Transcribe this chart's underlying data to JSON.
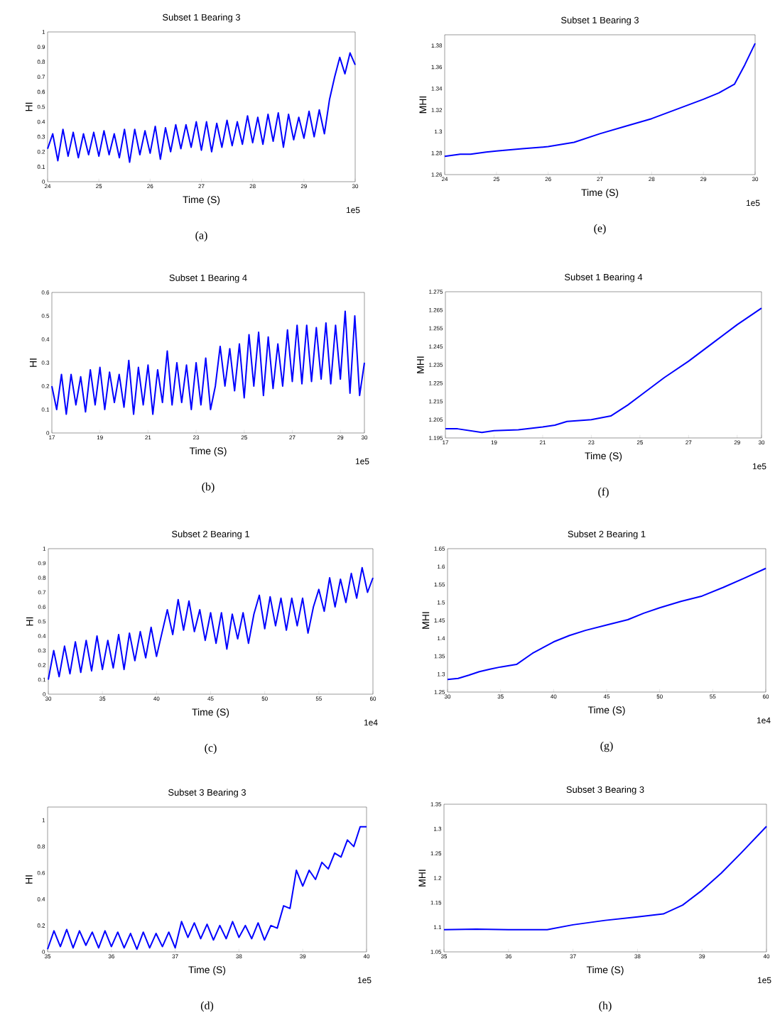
{
  "chart_data": [
    {
      "type": "line",
      "title": "Subset 1 Bearing 3",
      "xlabel": "Time (S)",
      "ylabel": "HI",
      "annotations": [
        "1e5",
        "(a)"
      ],
      "color": "#0000ff",
      "marker": "none",
      "xlim": [
        24,
        30
      ],
      "ylim": [
        0,
        1
      ],
      "xticks": [
        24,
        25,
        26,
        27,
        28,
        29,
        30
      ],
      "yticks": [
        0,
        0.1,
        0.2,
        0.3,
        0.4,
        0.5,
        0.6,
        0.7,
        0.8,
        0.9,
        1
      ],
      "x": [
        24.0,
        24.1,
        24.2,
        24.3,
        24.4,
        24.5,
        24.6,
        24.7,
        24.8,
        24.9,
        25.0,
        25.1,
        25.2,
        25.3,
        25.4,
        25.5,
        25.6,
        25.7,
        25.8,
        25.9,
        26.0,
        26.1,
        26.2,
        26.3,
        26.4,
        26.5,
        26.6,
        26.7,
        26.8,
        26.9,
        27.0,
        27.1,
        27.2,
        27.3,
        27.4,
        27.5,
        27.6,
        27.7,
        27.8,
        27.9,
        28.0,
        28.1,
        28.2,
        28.3,
        28.4,
        28.5,
        28.6,
        28.7,
        28.8,
        28.9,
        29.0,
        29.1,
        29.2,
        29.3,
        29.4,
        29.5,
        29.6,
        29.7,
        29.8,
        29.9,
        30.0
      ],
      "values": [
        0.22,
        0.32,
        0.14,
        0.35,
        0.17,
        0.33,
        0.16,
        0.32,
        0.18,
        0.33,
        0.17,
        0.34,
        0.18,
        0.32,
        0.16,
        0.35,
        0.13,
        0.35,
        0.18,
        0.34,
        0.19,
        0.37,
        0.15,
        0.36,
        0.2,
        0.38,
        0.22,
        0.38,
        0.23,
        0.4,
        0.21,
        0.4,
        0.2,
        0.39,
        0.23,
        0.41,
        0.24,
        0.4,
        0.25,
        0.44,
        0.26,
        0.43,
        0.25,
        0.45,
        0.27,
        0.46,
        0.23,
        0.45,
        0.28,
        0.43,
        0.29,
        0.47,
        0.3,
        0.48,
        0.32,
        0.55,
        0.7,
        0.83,
        0.72,
        0.86,
        0.78
      ]
    },
    {
      "type": "line",
      "title": "Subset 1 Bearing 3",
      "xlabel": "Time (S)",
      "ylabel": "MHI",
      "annotations": [
        "1e5",
        "(e)"
      ],
      "color": "#0000ff",
      "marker": "none",
      "xlim": [
        24,
        30
      ],
      "ylim": [
        1.26,
        1.39
      ],
      "xticks": [
        24,
        25,
        26,
        27,
        28,
        29,
        30
      ],
      "yticks": [
        1.26,
        1.28,
        1.3,
        1.32,
        1.34,
        1.36,
        1.38
      ],
      "x": [
        24,
        24.3,
        24.5,
        24.8,
        25,
        25.5,
        26,
        26.5,
        27,
        27.5,
        28,
        28.5,
        29,
        29.3,
        29.6,
        29.8,
        30
      ],
      "values": [
        1.277,
        1.279,
        1.279,
        1.281,
        1.282,
        1.284,
        1.286,
        1.29,
        1.298,
        1.305,
        1.312,
        1.321,
        1.33,
        1.336,
        1.344,
        1.362,
        1.382
      ]
    },
    {
      "type": "line",
      "title": "Subset 1 Bearing 4",
      "xlabel": "Time (S)",
      "ylabel": "HI",
      "annotations": [
        "1e5",
        "(b)"
      ],
      "color": "#0000ff",
      "marker": "none",
      "xlim": [
        17,
        30
      ],
      "ylim": [
        0,
        0.6
      ],
      "xticks": [
        17,
        19,
        21,
        23,
        25,
        27,
        29,
        30
      ],
      "yticks": [
        0,
        0.1,
        0.2,
        0.3,
        0.4,
        0.5,
        0.6
      ],
      "x": [
        17.0,
        17.2,
        17.4,
        17.6,
        17.8,
        18.0,
        18.2,
        18.4,
        18.6,
        18.8,
        19.0,
        19.2,
        19.4,
        19.6,
        19.8,
        20.0,
        20.2,
        20.4,
        20.6,
        20.8,
        21.0,
        21.2,
        21.4,
        21.6,
        21.8,
        22.0,
        22.2,
        22.4,
        22.6,
        22.8,
        23.0,
        23.2,
        23.4,
        23.6,
        23.8,
        24.0,
        24.2,
        24.4,
        24.6,
        24.8,
        25.0,
        25.2,
        25.4,
        25.6,
        25.8,
        26.0,
        26.2,
        26.4,
        26.6,
        26.8,
        27.0,
        27.2,
        27.4,
        27.6,
        27.8,
        28.0,
        28.2,
        28.4,
        28.6,
        28.8,
        29.0,
        29.2,
        29.4,
        29.6,
        29.8,
        30.0
      ],
      "values": [
        0.2,
        0.1,
        0.25,
        0.08,
        0.25,
        0.12,
        0.24,
        0.09,
        0.27,
        0.12,
        0.28,
        0.1,
        0.26,
        0.13,
        0.25,
        0.11,
        0.31,
        0.08,
        0.28,
        0.12,
        0.29,
        0.08,
        0.27,
        0.13,
        0.35,
        0.12,
        0.3,
        0.13,
        0.29,
        0.1,
        0.3,
        0.12,
        0.32,
        0.1,
        0.2,
        0.37,
        0.2,
        0.36,
        0.18,
        0.38,
        0.15,
        0.42,
        0.2,
        0.43,
        0.16,
        0.41,
        0.19,
        0.38,
        0.2,
        0.44,
        0.22,
        0.46,
        0.21,
        0.46,
        0.22,
        0.45,
        0.23,
        0.47,
        0.21,
        0.46,
        0.23,
        0.52,
        0.17,
        0.5,
        0.16,
        0.3
      ]
    },
    {
      "type": "line",
      "title": "Subset 1 Bearing 4",
      "xlabel": "Time (S)",
      "ylabel": "MHI",
      "annotations": [
        "1e5",
        "(f)"
      ],
      "color": "#0000ff",
      "marker": "none",
      "xlim": [
        17,
        30
      ],
      "ylim": [
        1.195,
        1.275
      ],
      "xticks": [
        17,
        19,
        21,
        23,
        25,
        27,
        29,
        30
      ],
      "yticks": [
        1.195,
        1.205,
        1.215,
        1.225,
        1.235,
        1.245,
        1.255,
        1.265,
        1.275
      ],
      "x": [
        17,
        17.5,
        18,
        18.5,
        19,
        20,
        21,
        21.5,
        22,
        23,
        23.8,
        24.5,
        25,
        26,
        27,
        28,
        29,
        30
      ],
      "values": [
        1.2,
        1.2,
        1.199,
        1.198,
        1.199,
        1.1995,
        1.201,
        1.202,
        1.204,
        1.205,
        1.207,
        1.213,
        1.218,
        1.228,
        1.237,
        1.247,
        1.257,
        1.266
      ]
    },
    {
      "type": "line",
      "title": "Subset 2 Bearing 1",
      "xlabel": "Time (S)",
      "ylabel": "HI",
      "annotations": [
        "1e4",
        "(c)"
      ],
      "color": "#0000ff",
      "marker": "none",
      "xlim": [
        30,
        60
      ],
      "ylim": [
        0,
        1
      ],
      "xticks": [
        30,
        35,
        40,
        45,
        50,
        55,
        60
      ],
      "yticks": [
        0,
        0.1,
        0.2,
        0.3,
        0.4,
        0.5,
        0.6,
        0.7,
        0.8,
        0.9,
        1
      ],
      "x": [
        30.0,
        30.5,
        31.0,
        31.5,
        32.0,
        32.5,
        33.0,
        33.5,
        34.0,
        34.5,
        35.0,
        35.5,
        36.0,
        36.5,
        37.0,
        37.5,
        38.0,
        38.5,
        39.0,
        39.5,
        40.0,
        40.5,
        41.0,
        41.5,
        42.0,
        42.5,
        43.0,
        43.5,
        44.0,
        44.5,
        45.0,
        45.5,
        46.0,
        46.5,
        47.0,
        47.5,
        48.0,
        48.5,
        49.0,
        49.5,
        50.0,
        50.5,
        51.0,
        51.5,
        52.0,
        52.5,
        53.0,
        53.5,
        54.0,
        54.5,
        55.0,
        55.5,
        56.0,
        56.5,
        57.0,
        57.5,
        58.0,
        58.5,
        59.0,
        59.5,
        60.0
      ],
      "values": [
        0.1,
        0.3,
        0.12,
        0.33,
        0.14,
        0.36,
        0.15,
        0.37,
        0.16,
        0.4,
        0.17,
        0.37,
        0.18,
        0.41,
        0.17,
        0.42,
        0.23,
        0.43,
        0.25,
        0.46,
        0.26,
        0.42,
        0.58,
        0.41,
        0.65,
        0.44,
        0.64,
        0.43,
        0.58,
        0.37,
        0.56,
        0.35,
        0.56,
        0.31,
        0.55,
        0.38,
        0.56,
        0.35,
        0.55,
        0.68,
        0.45,
        0.67,
        0.47,
        0.66,
        0.44,
        0.66,
        0.47,
        0.66,
        0.42,
        0.6,
        0.72,
        0.57,
        0.8,
        0.6,
        0.79,
        0.63,
        0.83,
        0.66,
        0.87,
        0.7,
        0.8
      ]
    },
    {
      "type": "line",
      "title": "Subset 2 Bearing 1",
      "xlabel": "Time (S)",
      "ylabel": "MHI",
      "annotations": [
        "1e4",
        "(g)"
      ],
      "color": "#0000ff",
      "marker": "none",
      "xlim": [
        30,
        60
      ],
      "ylim": [
        1.25,
        1.65
      ],
      "xticks": [
        30,
        35,
        40,
        45,
        50,
        55,
        60
      ],
      "yticks": [
        1.25,
        1.3,
        1.35,
        1.4,
        1.45,
        1.5,
        1.55,
        1.6,
        1.65
      ],
      "x": [
        30,
        31,
        32,
        33,
        34,
        35,
        36.5,
        38,
        40,
        41.5,
        43,
        45,
        47,
        48.5,
        50,
        52,
        54,
        56,
        58,
        60
      ],
      "values": [
        1.285,
        1.288,
        1.297,
        1.307,
        1.314,
        1.32,
        1.327,
        1.358,
        1.39,
        1.408,
        1.422,
        1.437,
        1.452,
        1.47,
        1.485,
        1.503,
        1.518,
        1.542,
        1.568,
        1.595
      ]
    },
    {
      "type": "line",
      "title": "Subset 3 Bearing 3",
      "xlabel": "Time (S)",
      "ylabel": "HI",
      "annotations": [
        "1e5",
        "(d)"
      ],
      "color": "#0000ff",
      "marker": "none",
      "xlim": [
        35,
        40
      ],
      "ylim": [
        0,
        1.1
      ],
      "xticks": [
        35,
        36,
        37,
        38,
        39,
        40
      ],
      "yticks": [
        0,
        0.2,
        0.4,
        0.6,
        0.8,
        1
      ],
      "x": [
        35.0,
        35.1,
        35.2,
        35.3,
        35.4,
        35.5,
        35.6,
        35.7,
        35.8,
        35.9,
        36.0,
        36.1,
        36.2,
        36.3,
        36.4,
        36.5,
        36.6,
        36.7,
        36.8,
        36.9,
        37.0,
        37.1,
        37.2,
        37.3,
        37.4,
        37.5,
        37.6,
        37.7,
        37.8,
        37.9,
        38.0,
        38.1,
        38.2,
        38.3,
        38.4,
        38.5,
        38.6,
        38.7,
        38.8,
        38.9,
        39.0,
        39.1,
        39.2,
        39.3,
        39.4,
        39.5,
        39.6,
        39.7,
        39.8,
        39.9,
        40.0
      ],
      "values": [
        0.02,
        0.16,
        0.04,
        0.17,
        0.03,
        0.16,
        0.05,
        0.15,
        0.03,
        0.16,
        0.04,
        0.15,
        0.03,
        0.14,
        0.02,
        0.15,
        0.03,
        0.14,
        0.04,
        0.15,
        0.03,
        0.23,
        0.11,
        0.22,
        0.1,
        0.21,
        0.09,
        0.2,
        0.1,
        0.23,
        0.11,
        0.2,
        0.1,
        0.22,
        0.09,
        0.2,
        0.18,
        0.35,
        0.33,
        0.62,
        0.5,
        0.62,
        0.55,
        0.68,
        0.63,
        0.75,
        0.72,
        0.85,
        0.8,
        0.95,
        0.95
      ]
    },
    {
      "type": "line",
      "title": "Subset 3 Bearing 3",
      "xlabel": "Time (S)",
      "ylabel": "MHI",
      "annotations": [
        "1e5",
        "(h)"
      ],
      "color": "#0000ff",
      "marker": "none",
      "xlim": [
        35,
        40
      ],
      "ylim": [
        1.05,
        1.35
      ],
      "xticks": [
        35,
        36,
        37,
        38,
        39,
        40
      ],
      "yticks": [
        1.05,
        1.1,
        1.15,
        1.2,
        1.25,
        1.3,
        1.35
      ],
      "x": [
        35,
        35.5,
        36,
        36.6,
        37,
        37.5,
        38,
        38.4,
        38.7,
        39,
        39.3,
        39.6,
        40
      ],
      "values": [
        1.095,
        1.096,
        1.095,
        1.095,
        1.105,
        1.114,
        1.121,
        1.127,
        1.145,
        1.175,
        1.21,
        1.25,
        1.305
      ]
    }
  ]
}
